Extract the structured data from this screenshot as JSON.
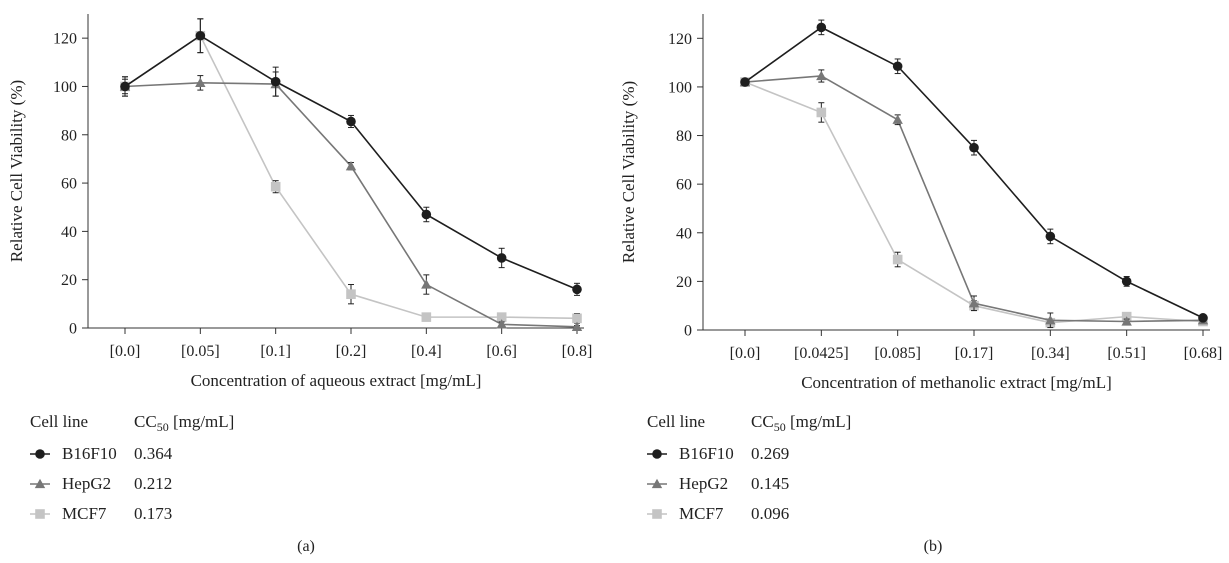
{
  "charts": [
    {
      "type": "line",
      "panel_label": "(a)",
      "xlabel": "Concentration of aqueous extract [mg/mL]",
      "ylabel": "Relative Cell Viability (%)",
      "categories": [
        "[0.0]",
        "[0.05]",
        "[0.1]",
        "[0.2]",
        "[0.4]",
        "[0.6]",
        "[0.8]"
      ],
      "ylim": [
        0,
        130
      ],
      "yticks": [
        0,
        20,
        40,
        60,
        80,
        100,
        120
      ],
      "grid": false,
      "series": [
        {
          "name": "B16F10",
          "marker": "circle",
          "color": "#1e1e1e",
          "values": [
            100,
            121,
            102,
            85.5,
            47,
            29,
            16
          ],
          "errors": [
            4,
            7,
            6,
            2.5,
            3,
            4,
            2.5
          ]
        },
        {
          "name": "HepG2",
          "marker": "triangle",
          "color": "#777777",
          "values": [
            100,
            101.5,
            101,
            67,
            18,
            1.5,
            0.5
          ],
          "errors": [
            3,
            3,
            5,
            1.5,
            4,
            1,
            0.5
          ]
        },
        {
          "name": "MCF7",
          "marker": "square",
          "color": "#c4c4c4",
          "values": [
            100,
            121,
            58.5,
            14,
            4.5,
            4.5,
            4
          ],
          "errors": [
            4,
            7,
            2.5,
            4,
            1,
            1,
            2
          ]
        }
      ],
      "legend": {
        "header_line": "Cell line",
        "header_cc": "CC",
        "header_sub": "50",
        "header_unit": " [mg/mL]",
        "entries": [
          {
            "name": "B16F10",
            "cc50": "0.364"
          },
          {
            "name": "HepG2",
            "cc50": "0.212"
          },
          {
            "name": "MCF7",
            "cc50": "0.173"
          }
        ]
      }
    },
    {
      "type": "line",
      "panel_label": "(b)",
      "xlabel": "Concentration of methanolic extract [mg/mL]",
      "ylabel": "Relative Cell Viability (%)",
      "categories": [
        "[0.0]",
        "[0.0425]",
        "[0.085]",
        "[0.17]",
        "[0.34]",
        "[0.51]",
        "[0.68]"
      ],
      "ylim": [
        0,
        130
      ],
      "yticks": [
        0,
        20,
        40,
        60,
        80,
        100,
        120
      ],
      "grid": false,
      "series": [
        {
          "name": "B16F10",
          "marker": "circle",
          "color": "#1e1e1e",
          "values": [
            102,
            124.5,
            108.5,
            75,
            38.5,
            20,
            5
          ],
          "errors": [
            1,
            3,
            3,
            3,
            3,
            2,
            1
          ]
        },
        {
          "name": "HepG2",
          "marker": "triangle",
          "color": "#777777",
          "values": [
            102,
            104.5,
            86.5,
            11,
            4,
            3.5,
            4
          ],
          "errors": [
            1,
            2.5,
            2,
            3,
            3,
            1,
            1
          ]
        },
        {
          "name": "MCF7",
          "marker": "square",
          "color": "#c4c4c4",
          "values": [
            102,
            89.5,
            29,
            10,
            3,
            5.5,
            3.5
          ],
          "errors": [
            1,
            4,
            3,
            2,
            1,
            1,
            1
          ]
        }
      ],
      "legend": {
        "header_line": "Cell line",
        "header_cc": "CC",
        "header_sub": "50",
        "header_unit": " [mg/mL]",
        "entries": [
          {
            "name": "B16F10",
            "cc50": "0.269"
          },
          {
            "name": "HepG2",
            "cc50": "0.145"
          },
          {
            "name": "MCF7",
            "cc50": "0.096"
          }
        ]
      }
    }
  ]
}
